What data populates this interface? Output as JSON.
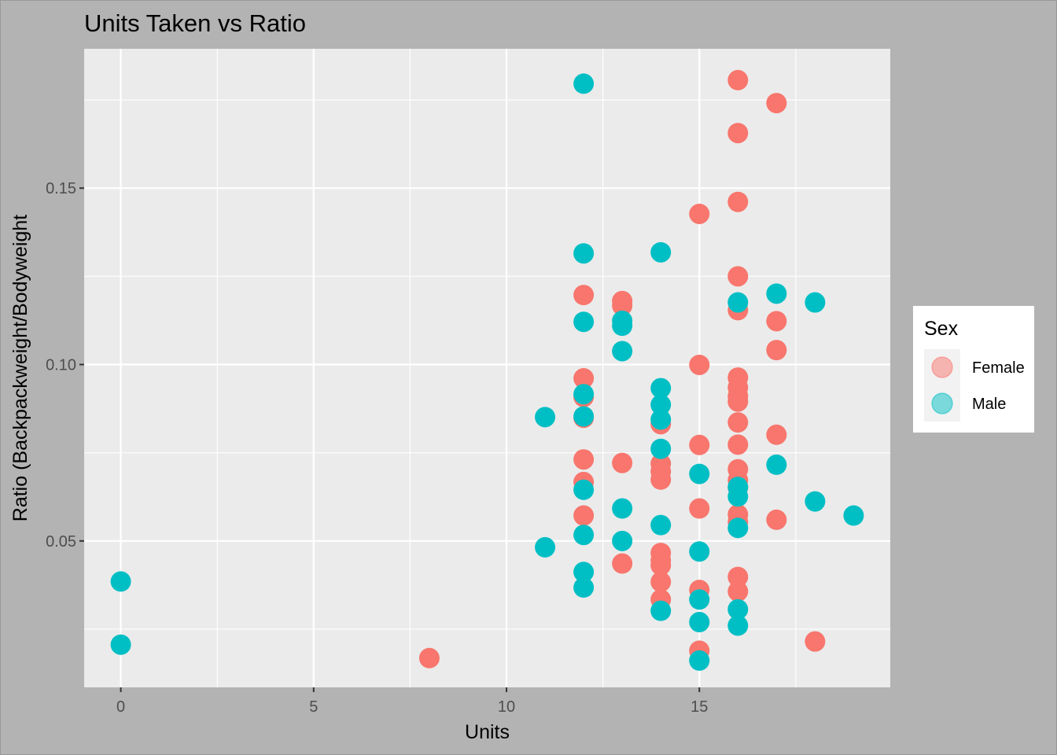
{
  "chart_data": {
    "type": "scatter",
    "title": "Units Taken vs Ratio",
    "xlabel": "Units",
    "ylabel": "Ratio (Backpackweight/Bodyweight",
    "xlim": [
      -0.95,
      19.95
    ],
    "ylim": [
      0.0085,
      0.1895
    ],
    "x_ticks": [
      0,
      5,
      10,
      15
    ],
    "x_tick_labels": [
      "0",
      "5",
      "10",
      "15"
    ],
    "x_minor": [
      2.5,
      7.5,
      12.5,
      17.5
    ],
    "y_ticks": [
      0.05,
      0.1,
      0.15
    ],
    "y_tick_labels": [
      "0.05",
      "0.10",
      "0.15"
    ],
    "y_minor": [
      0.025,
      0.075,
      0.125,
      0.175
    ],
    "grid": true,
    "legend": {
      "title": "Sex",
      "position": "right",
      "entries": [
        "Female",
        "Male"
      ]
    },
    "colors": {
      "Female": "#F8766D",
      "Male": "#00BFC4"
    },
    "series": [
      {
        "name": "Female",
        "points": [
          [
            8,
            0.0168
          ],
          [
            12,
            0.1197
          ],
          [
            12,
            0.0961
          ],
          [
            12,
            0.0908
          ],
          [
            12,
            0.0849
          ],
          [
            12,
            0.0731
          ],
          [
            12,
            0.0667
          ],
          [
            12,
            0.0572
          ],
          [
            13,
            0.118
          ],
          [
            13,
            0.1167
          ],
          [
            13,
            0.0721
          ],
          [
            13,
            0.0436
          ],
          [
            14,
            0.0831
          ],
          [
            14,
            0.0719
          ],
          [
            14,
            0.0697
          ],
          [
            14,
            0.0674
          ],
          [
            14,
            0.0466
          ],
          [
            14,
            0.0445
          ],
          [
            14,
            0.0431
          ],
          [
            14,
            0.0384
          ],
          [
            14,
            0.0334
          ],
          [
            15,
            0.1427
          ],
          [
            15,
            0.0999
          ],
          [
            15,
            0.0772
          ],
          [
            15,
            0.0592
          ],
          [
            15,
            0.0361
          ],
          [
            15,
            0.0189
          ],
          [
            16,
            0.1806
          ],
          [
            16,
            0.1656
          ],
          [
            16,
            0.1461
          ],
          [
            16,
            0.125
          ],
          [
            16,
            0.1154
          ],
          [
            16,
            0.0963
          ],
          [
            16,
            0.0935
          ],
          [
            16,
            0.091
          ],
          [
            16,
            0.0895
          ],
          [
            16,
            0.0836
          ],
          [
            16,
            0.0773
          ],
          [
            16,
            0.0703
          ],
          [
            16,
            0.0672
          ],
          [
            16,
            0.0652
          ],
          [
            16,
            0.0575
          ],
          [
            16,
            0.0554
          ],
          [
            16,
            0.0398
          ],
          [
            16,
            0.0357
          ],
          [
            17,
            0.1741
          ],
          [
            17,
            0.1123
          ],
          [
            17,
            0.1041
          ],
          [
            17,
            0.0801
          ],
          [
            17,
            0.056
          ],
          [
            18,
            0.0215
          ]
        ]
      },
      {
        "name": "Male",
        "points": [
          [
            0,
            0.0385
          ],
          [
            0,
            0.0206
          ],
          [
            11,
            0.0851
          ],
          [
            11,
            0.0482
          ],
          [
            12,
            0.1796
          ],
          [
            12,
            0.1315
          ],
          [
            12,
            0.1121
          ],
          [
            12,
            0.0916
          ],
          [
            12,
            0.0853
          ],
          [
            12,
            0.0645
          ],
          [
            12,
            0.0517
          ],
          [
            12,
            0.0412
          ],
          [
            12,
            0.0368
          ],
          [
            13,
            0.1124
          ],
          [
            13,
            0.111
          ],
          [
            13,
            0.1038
          ],
          [
            13,
            0.0592
          ],
          [
            13,
            0.05
          ],
          [
            14,
            0.1318
          ],
          [
            14,
            0.0933
          ],
          [
            14,
            0.0886
          ],
          [
            14,
            0.0844
          ],
          [
            14,
            0.0761
          ],
          [
            14,
            0.0545
          ],
          [
            14,
            0.0302
          ],
          [
            15,
            0.069
          ],
          [
            15,
            0.047
          ],
          [
            15,
            0.0334
          ],
          [
            15,
            0.027
          ],
          [
            15,
            0.0161
          ],
          [
            16,
            0.1176
          ],
          [
            16,
            0.0653
          ],
          [
            16,
            0.0626
          ],
          [
            16,
            0.0537
          ],
          [
            16,
            0.0306
          ],
          [
            16,
            0.026
          ],
          [
            17,
            0.1201
          ],
          [
            17,
            0.0716
          ],
          [
            18,
            0.1176
          ],
          [
            18,
            0.0612
          ],
          [
            19,
            0.0572
          ]
        ]
      }
    ]
  }
}
